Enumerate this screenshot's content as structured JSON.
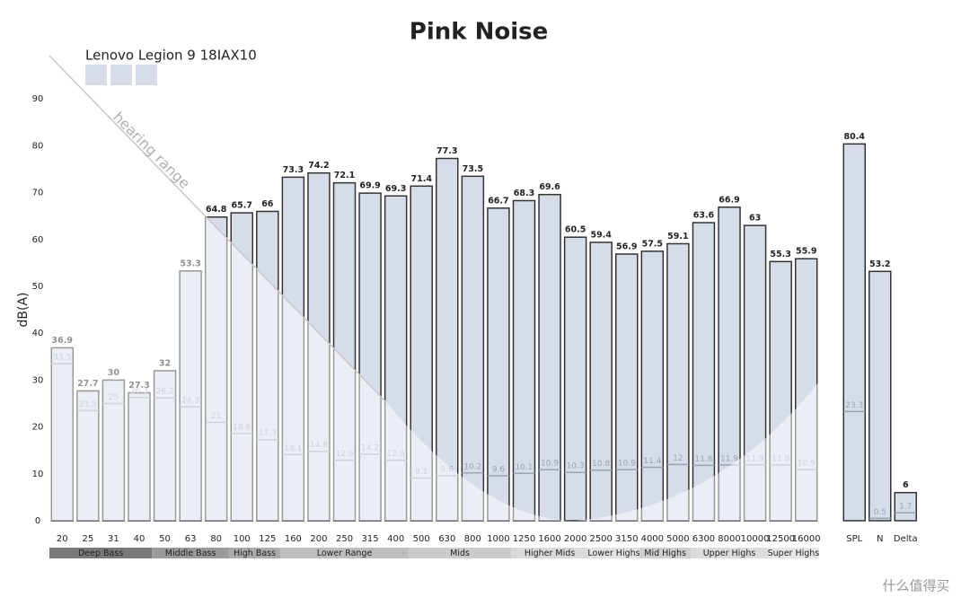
{
  "chart_data": [
    {
      "type": "bar",
      "title": "Pink Noise",
      "y_label": "dB(A)",
      "annotation": "hearing range",
      "categories": [
        "20",
        "25",
        "31",
        "40",
        "50",
        "63",
        "80",
        "100",
        "125",
        "160",
        "200",
        "250",
        "315",
        "400",
        "500",
        "630",
        "800",
        "1000",
        "1250",
        "1600",
        "2000",
        "2500",
        "3150",
        "4000",
        "5000",
        "6300",
        "8000",
        "10000",
        "12500",
        "16000"
      ],
      "series": [
        {
          "name": "Lenovo Legion 9 18IAX10",
          "color": "#d6dce8",
          "values": [
            36.9,
            27.7,
            30,
            27.3,
            32,
            53.3,
            64.8,
            65.7,
            66,
            73.3,
            74.2,
            72.1,
            69.9,
            69.3,
            71.4,
            77.3,
            73.5,
            66.7,
            68.3,
            69.6,
            60.5,
            59.4,
            56.9,
            57.5,
            59.1,
            63.6,
            66.9,
            63,
            55.3,
            55.9
          ]
        },
        {
          "color": "#9aa3b3",
          "values": [
            33.5,
            23.5,
            25,
            26.3,
            26.2,
            24.3,
            21,
            18.6,
            17.3,
            14.1,
            14.8,
            12.9,
            14.2,
            12.9,
            9.1,
            9.6,
            10.2,
            9.6,
            10.1,
            10.9,
            10.3,
            10.8,
            10.9,
            11.4,
            12,
            11.8,
            11.9,
            11.9,
            11.9,
            10.9
          ]
        }
      ],
      "ranges": [
        "Deep Bass",
        "Middle Bass",
        "High Bass",
        "Lower Range",
        "Mids",
        "Higher Mids",
        "Lower Highs",
        "Mid Highs",
        "Upper Highs",
        "Super Highs"
      ],
      "ylim": [
        0,
        100
      ],
      "yticks": [
        0,
        10,
        20,
        30,
        40,
        50,
        60,
        70,
        80,
        90
      ],
      "grid": false
    },
    {
      "type": "bar",
      "categories": [
        "SPL",
        "N",
        "Delta"
      ],
      "series": [
        {
          "color": "#d6dce8",
          "values": [
            80.4,
            53.2,
            6
          ]
        },
        {
          "color": "#9aa3b3",
          "values": [
            23.3,
            0.5,
            1.7
          ]
        }
      ],
      "ylim": [
        0,
        100
      ]
    }
  ],
  "watermark": "什么值得买"
}
